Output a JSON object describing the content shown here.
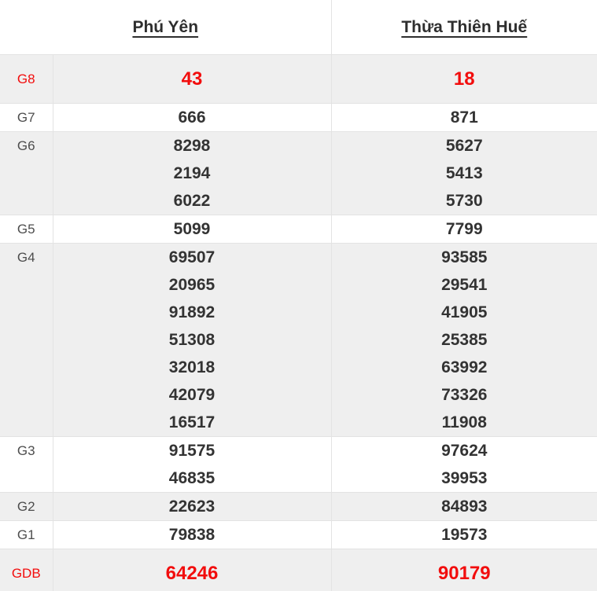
{
  "table": {
    "columns": [
      {
        "label": "Phú Yên"
      },
      {
        "label": "Thừa Thiên Huế"
      }
    ],
    "rows": [
      {
        "prize": "G8",
        "highlight": true,
        "values1": [
          "43"
        ],
        "values2": [
          "18"
        ]
      },
      {
        "prize": "G7",
        "highlight": false,
        "values1": [
          "666"
        ],
        "values2": [
          "871"
        ]
      },
      {
        "prize": "G6",
        "highlight": false,
        "values1": [
          "8298",
          "2194",
          "6022"
        ],
        "values2": [
          "5627",
          "5413",
          "5730"
        ]
      },
      {
        "prize": "G5",
        "highlight": false,
        "values1": [
          "5099"
        ],
        "values2": [
          "7799"
        ]
      },
      {
        "prize": "G4",
        "highlight": false,
        "values1": [
          "69507",
          "20965",
          "91892",
          "51308",
          "32018",
          "42079",
          "16517"
        ],
        "values2": [
          "93585",
          "29541",
          "41905",
          "25385",
          "63992",
          "73326",
          "11908"
        ]
      },
      {
        "prize": "G3",
        "highlight": false,
        "values1": [
          "91575",
          "46835"
        ],
        "values2": [
          "97624",
          "39953"
        ]
      },
      {
        "prize": "G2",
        "highlight": false,
        "values1": [
          "22623"
        ],
        "values2": [
          "84893"
        ]
      },
      {
        "prize": "G1",
        "highlight": false,
        "values1": [
          "79838"
        ],
        "values2": [
          "19573"
        ]
      },
      {
        "prize": "GDB",
        "highlight": true,
        "values1": [
          "64246"
        ],
        "values2": [
          "90179"
        ]
      }
    ],
    "colors": {
      "highlight": "#f20d0d",
      "value_text": "#333333",
      "label_text": "#4d4d4d",
      "header_text": "#2e2e2e",
      "row_shade": "#efefef",
      "border": "#e3e3e3"
    }
  }
}
